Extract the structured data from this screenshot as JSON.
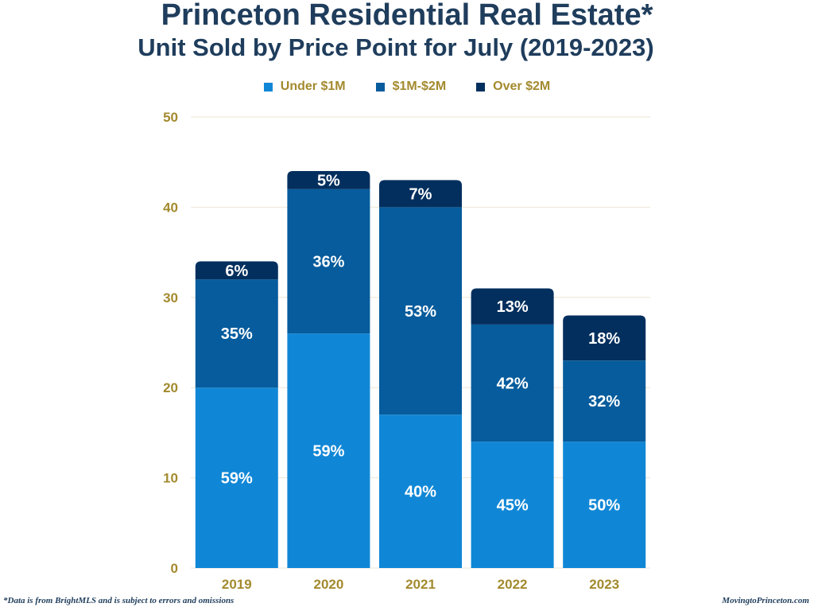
{
  "chart_data": {
    "type": "bar",
    "stacked": true,
    "title": "Princeton Residential Real Estate*",
    "subtitle": "Unit Sold by Price Point for July (2019-2023)",
    "xlabel": "",
    "ylabel": "",
    "ylim": [
      0,
      50
    ],
    "yticks": [
      0,
      10,
      20,
      30,
      40,
      50
    ],
    "grid": true,
    "legend_position": "top",
    "categories": [
      "2019",
      "2020",
      "2021",
      "2022",
      "2023"
    ],
    "series": [
      {
        "name": "Under $1M",
        "color": "#1087d6",
        "values": [
          20,
          26,
          17,
          14,
          14
        ],
        "labels": [
          "59%",
          "59%",
          "40%",
          "45%",
          "50%"
        ]
      },
      {
        "name": "$1M-$2M",
        "color": "#065c9c",
        "values": [
          12,
          16,
          23,
          13,
          9
        ],
        "labels": [
          "35%",
          "36%",
          "53%",
          "42%",
          "32%"
        ]
      },
      {
        "name": "Over $2M",
        "color": "#032f5e",
        "values": [
          2,
          2,
          3,
          4,
          5
        ],
        "labels": [
          "6%",
          "5%",
          "7%",
          "13%",
          "18%"
        ]
      }
    ]
  },
  "footer": {
    "note": "*Data is from BrightMLS and is subject to errors and omissions",
    "source": "MovingtoPrinceton.com"
  }
}
